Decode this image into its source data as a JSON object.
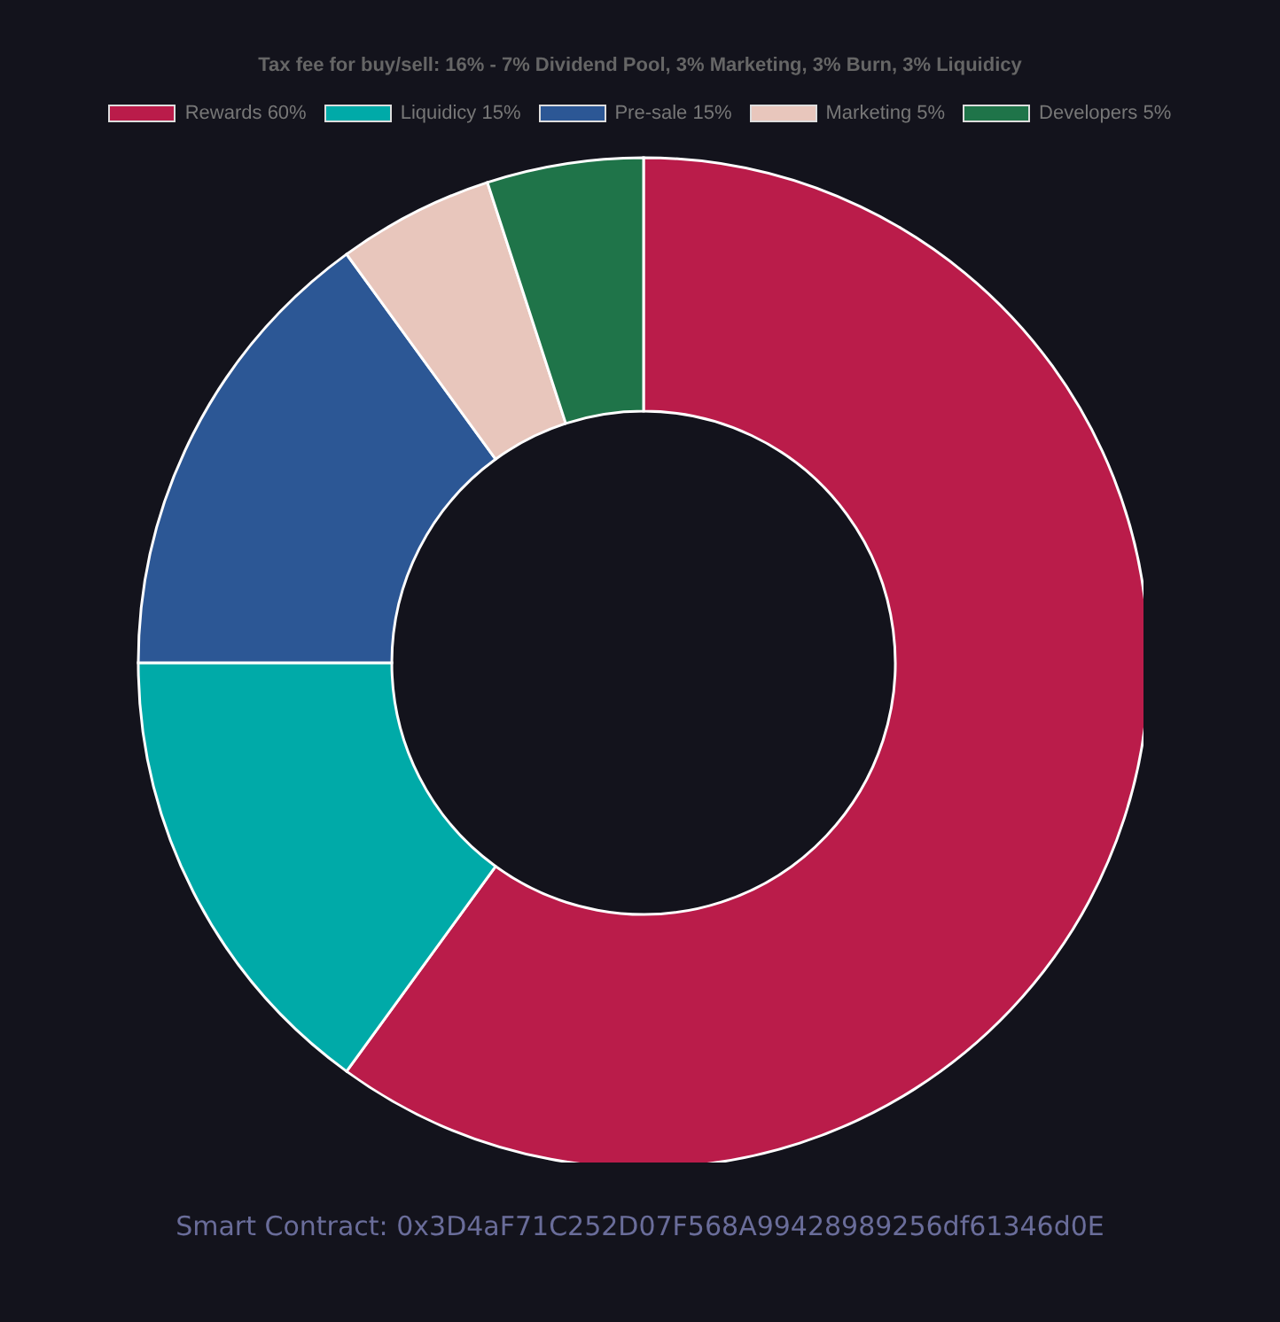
{
  "chart_data": {
    "type": "donut",
    "title": "Tax fee for buy/sell: 16% - 7% Dividend Pool, 3% Marketing, 3% Burn, 3% Liquidicy",
    "categories": [
      "Rewards 60%",
      "Liquidicy 15%",
      "Pre-sale 15%",
      "Marketing 5%",
      "Developers 5%"
    ],
    "values": [
      60,
      15,
      15,
      5,
      5
    ],
    "colors": [
      "#ba1c4a",
      "#00aaa8",
      "#2c5795",
      "#e8c6bc",
      "#1f7449"
    ],
    "legend": "top",
    "annotations": [
      "Smart Contract: 0x3D4aF71C252D07F568A99428989256df61346d0E"
    ]
  }
}
